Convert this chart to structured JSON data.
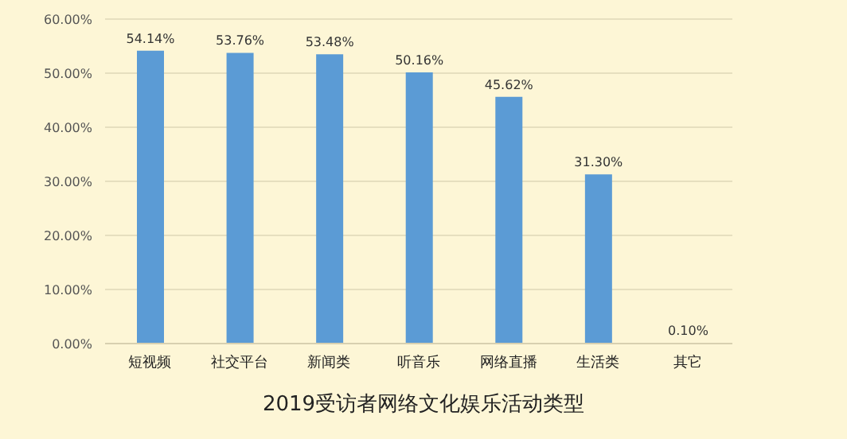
{
  "chart_data": {
    "type": "bar",
    "title": "2019受访者网络文化娱乐活动类型",
    "categories": [
      "短视频",
      "社交平台",
      "新闻类",
      "听音乐",
      "网络直播",
      "生活类",
      "其它"
    ],
    "values": [
      54.14,
      53.76,
      53.48,
      50.16,
      45.62,
      31.3,
      0.1
    ],
    "value_labels": [
      "54.14%",
      "53.76%",
      "53.48%",
      "50.16%",
      "45.62%",
      "31.30%",
      "0.10%"
    ],
    "color": "#5b9bd5",
    "ylim": [
      0,
      60
    ],
    "yticks": [
      {
        "value": 0,
        "label": "0.00%"
      },
      {
        "value": 10,
        "label": "10.00%"
      },
      {
        "value": 20,
        "label": "20.00%"
      },
      {
        "value": 30,
        "label": "30.00%"
      },
      {
        "value": 40,
        "label": "40.00%"
      },
      {
        "value": 50,
        "label": "50.00%"
      },
      {
        "value": 60,
        "label": "60.00%"
      }
    ],
    "grid": "y",
    "legend": false
  }
}
